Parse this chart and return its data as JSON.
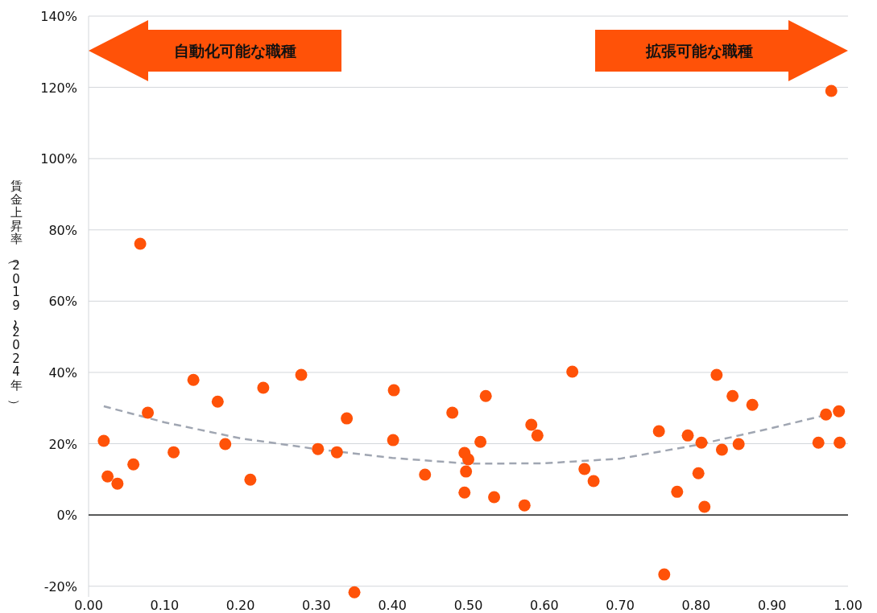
{
  "chart_data": {
    "type": "scatter",
    "ylabel": "賃金上昇率（2019〜2024年）",
    "annotations": [
      "自動化可能な職種",
      "拡張可能な職種"
    ],
    "xlim": [
      0,
      1
    ],
    "ylim": [
      -23,
      140
    ],
    "xticks": [
      {
        "value": 0,
        "label": "0.00"
      },
      {
        "value": 0.1,
        "label": "0.10"
      },
      {
        "value": 0.2,
        "label": "0.20"
      },
      {
        "value": 0.3,
        "label": "0.30"
      },
      {
        "value": 0.4,
        "label": "0.40"
      },
      {
        "value": 0.5,
        "label": "0.50"
      },
      {
        "value": 0.6,
        "label": "0.60"
      },
      {
        "value": 0.7,
        "label": "0.70"
      },
      {
        "value": 0.8,
        "label": "0.80"
      },
      {
        "value": 0.9,
        "label": "0.90"
      },
      {
        "value": 1,
        "label": "1.00"
      }
    ],
    "yticks": [
      {
        "value": -20,
        "label": "-20%"
      },
      {
        "value": 0,
        "label": "0%"
      },
      {
        "value": 20,
        "label": "20%"
      },
      {
        "value": 40,
        "label": "40%"
      },
      {
        "value": 60,
        "label": "60%"
      },
      {
        "value": 80,
        "label": "80%"
      },
      {
        "value": 100,
        "label": "100%"
      },
      {
        "value": 120,
        "label": "120%"
      },
      {
        "value": 140,
        "label": "140%"
      }
    ],
    "grid": "y",
    "marker": "circle",
    "ref_lines": [
      {
        "axis": "y",
        "value": 0,
        "color": "#000000"
      }
    ],
    "series": [
      {
        "type": "scatter",
        "color": "#ff5208",
        "x": [
          0.02,
          0.025,
          0.038,
          0.059,
          0.068,
          0.078,
          0.112,
          0.138,
          0.17,
          0.18,
          0.213,
          0.23,
          0.28,
          0.302,
          0.327,
          0.34,
          0.35,
          0.402,
          0.401,
          0.443,
          0.479,
          0.495,
          0.5,
          0.497,
          0.495,
          0.516,
          0.523,
          0.534,
          0.574,
          0.583,
          0.591,
          0.637,
          0.653,
          0.665,
          0.751,
          0.758,
          0.775,
          0.789,
          0.807,
          0.803,
          0.811,
          0.827,
          0.834,
          0.848,
          0.856,
          0.874,
          0.961,
          0.971,
          0.978,
          0.988,
          0.989
        ],
        "values": [
          20.8,
          10.8,
          8.8,
          14.2,
          76.1,
          28.7,
          17.6,
          37.9,
          31.8,
          19.9,
          9.9,
          35.7,
          39.3,
          18.5,
          17.6,
          27.1,
          -21.7,
          35.0,
          21.0,
          11.3,
          28.7,
          17.4,
          15.6,
          12.2,
          6.3,
          20.5,
          33.4,
          5.0,
          2.7,
          25.3,
          22.3,
          40.2,
          12.9,
          9.5,
          23.5,
          -16.7,
          6.5,
          22.3,
          20.3,
          11.7,
          2.3,
          39.3,
          18.3,
          33.4,
          19.9,
          30.9,
          20.3,
          28.2,
          119.0,
          29.1,
          20.3
        ]
      },
      {
        "type": "line",
        "color": "#a0a6b2",
        "line_style": "dashed",
        "marker": "none",
        "x": [
          0.02,
          0.1,
          0.2,
          0.3,
          0.4,
          0.5,
          0.6,
          0.7,
          0.8,
          0.9,
          0.97
        ],
        "values": [
          30.5,
          26,
          21.5,
          18.5,
          16,
          14.4,
          14.5,
          15.8,
          19.6,
          24.4,
          28
        ]
      }
    ]
  }
}
